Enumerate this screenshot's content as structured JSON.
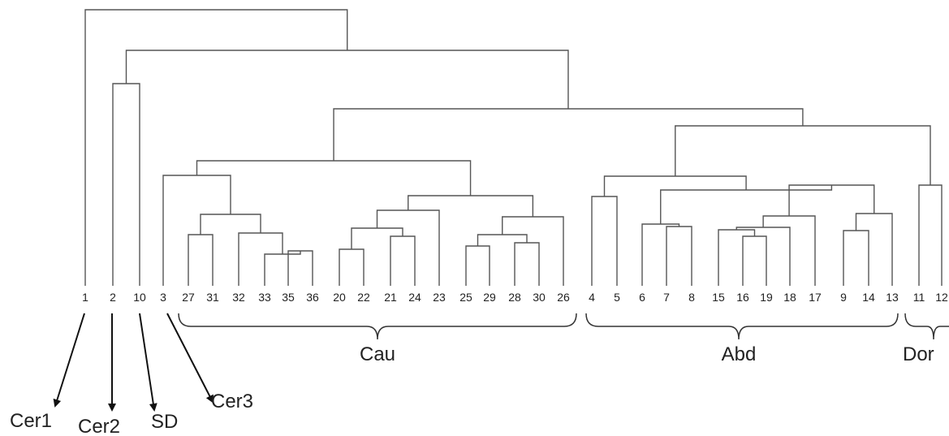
{
  "dendrogram": {
    "leaves": [
      "1",
      "2",
      "10",
      "3",
      "27",
      "31",
      "32",
      "33",
      "35",
      "36",
      "20",
      "22",
      "21",
      "24",
      "23",
      "25",
      "29",
      "28",
      "30",
      "26",
      "4",
      "5",
      "6",
      "7",
      "8",
      "15",
      "16",
      "19",
      "18",
      "17",
      "9",
      "14",
      "13",
      "11",
      "12"
    ],
    "line_color": "#555555"
  },
  "groups": [
    {
      "label": "Cau"
    },
    {
      "label": "Abd"
    },
    {
      "label": "Dor"
    }
  ],
  "annotations": [
    {
      "label": "Cer1",
      "leaf": "1"
    },
    {
      "label": "Cer2",
      "leaf": "2"
    },
    {
      "label": "SD",
      "leaf": "10"
    },
    {
      "label": "Cer3",
      "leaf": "3"
    }
  ]
}
